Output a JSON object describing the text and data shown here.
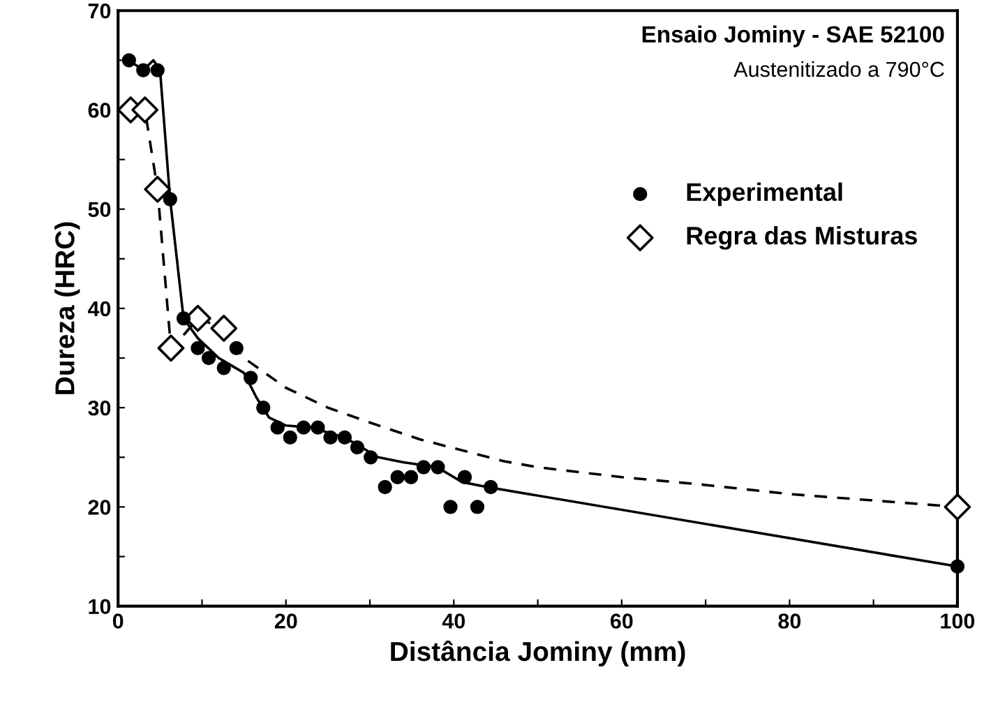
{
  "chart_data": {
    "type": "scatter",
    "title": "Ensaio Jominy - SAE 52100",
    "subtitle": "Austenitizado a 790°C",
    "xlabel": "Distância Jominy (mm)",
    "ylabel": "Dureza (HRC)",
    "xlim": [
      0,
      100
    ],
    "ylim": [
      10,
      70
    ],
    "xticks": [
      0,
      {
        "value": 10,
        "label": null
      },
      20,
      {
        "value": 30,
        "label": null
      },
      40,
      {
        "value": 50,
        "label": null
      },
      60,
      {
        "value": 70,
        "label": null
      },
      80,
      {
        "value": 90,
        "label": null
      },
      100
    ],
    "yticks": [
      10,
      {
        "value": 15,
        "label": null
      },
      20,
      {
        "value": 25,
        "label": null
      },
      30,
      {
        "value": 35,
        "label": null
      },
      40,
      {
        "value": 45,
        "label": null
      },
      50,
      {
        "value": 55,
        "label": null
      },
      60,
      {
        "value": 65,
        "label": null
      },
      70
    ],
    "grid": false,
    "legend": "right",
    "series": [
      {
        "type": "line",
        "color": "#000000",
        "line_style": "solid",
        "marker": "none",
        "x": [
          1.3,
          3.0,
          4.2,
          5.0,
          6.2,
          7.8,
          9.5,
          12,
          15,
          16.5,
          18,
          20,
          23,
          27,
          31,
          34,
          38,
          41,
          44,
          100
        ],
        "values": [
          65,
          64,
          65,
          64,
          51,
          39,
          37,
          35,
          33.5,
          31,
          29,
          28.2,
          28,
          27,
          25,
          24.5,
          24,
          22.5,
          22,
          14
        ]
      },
      {
        "type": "line",
        "color": "#000000",
        "line_style": "dashed",
        "marker": "none",
        "x": [
          1.5,
          3.2,
          4.7,
          6.3,
          8,
          9.5,
          11,
          12.6,
          15,
          20,
          25,
          30,
          36,
          46,
          50,
          60,
          69,
          80,
          100
        ],
        "values": [
          60,
          60,
          52,
          36,
          37.5,
          39,
          38.5,
          38,
          35,
          32,
          30,
          28.5,
          26.8,
          24.6,
          24,
          23,
          22.3,
          21.3,
          20
        ]
      },
      {
        "name": "Experimental",
        "color": "#000000",
        "marker": "circle",
        "x": [
          1.3,
          3.0,
          4.7,
          6.2,
          7.8,
          9.5,
          10.8,
          12.6,
          14.1,
          15.8,
          17.3,
          19.0,
          20.5,
          22.1,
          23.8,
          25.3,
          27.0,
          28.5,
          30.1,
          31.8,
          33.3,
          34.9,
          36.4,
          38.1,
          39.6,
          41.3,
          42.8,
          44.4,
          100
        ],
        "values": [
          65,
          64,
          64,
          51,
          39,
          36,
          35,
          34,
          36,
          33,
          30,
          28,
          27,
          28,
          28,
          27,
          27,
          26,
          25,
          22,
          23,
          23,
          24,
          24,
          20,
          23,
          20,
          22,
          14
        ]
      },
      {
        "name": "Regra das Misturas",
        "color": "#000000",
        "marker": "diamond",
        "x": [
          1.5,
          3.2,
          4.7,
          6.3,
          9.5,
          12.6,
          100
        ],
        "values": [
          60,
          60,
          52,
          36,
          39,
          38,
          20
        ]
      }
    ]
  }
}
